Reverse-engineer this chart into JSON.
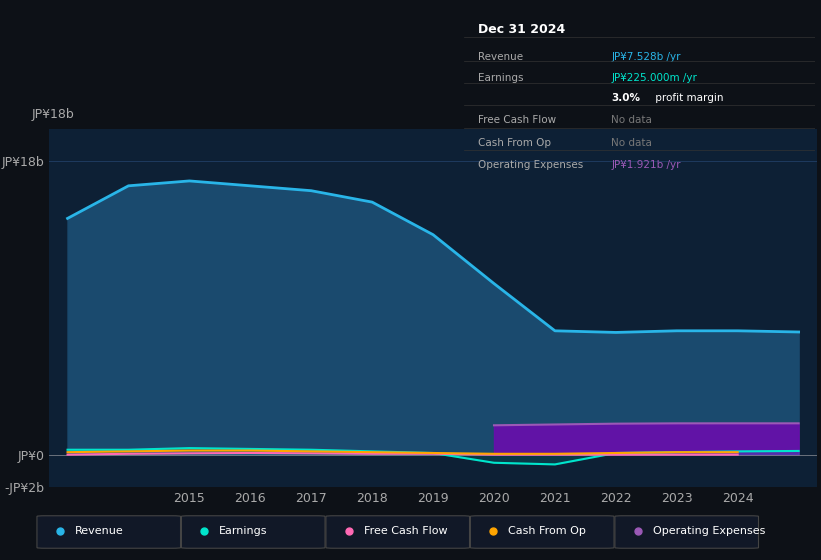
{
  "background_color": "#0d1117",
  "plot_bg_color": "#0d2035",
  "ylim": [
    -2000000000.0,
    20000000000.0
  ],
  "years": [
    2013,
    2014,
    2015,
    2016,
    2017,
    2018,
    2019,
    2020,
    2021,
    2022,
    2023,
    2024,
    2025
  ],
  "revenue": [
    14500000000.0,
    16500000000.0,
    16800000000.0,
    16500000000.0,
    16200000000.0,
    15500000000.0,
    13500000000.0,
    10500000000.0,
    7600000000.0,
    7500000000.0,
    7600000000.0,
    7600000000.0,
    7528000000.0
  ],
  "earnings": [
    300000000.0,
    300000000.0,
    400000000.0,
    350000000.0,
    300000000.0,
    200000000.0,
    100000000.0,
    -500000000.0,
    -600000000.0,
    100000000.0,
    150000000.0,
    200000000.0,
    225000000.0
  ],
  "free_cash_flow": [
    0.0,
    50000000.0,
    80000000.0,
    100000000.0,
    80000000.0,
    50000000.0,
    50000000.0,
    0.0,
    0.0,
    0.0,
    0.0,
    0.0,
    null
  ],
  "cash_from_op": [
    150000000.0,
    200000000.0,
    250000000.0,
    250000000.0,
    200000000.0,
    150000000.0,
    100000000.0,
    50000000.0,
    50000000.0,
    100000000.0,
    150000000.0,
    150000000.0,
    null
  ],
  "operating_expenses": [
    null,
    null,
    null,
    null,
    null,
    null,
    null,
    1800000000.0,
    1850000000.0,
    1900000000.0,
    1920000000.0,
    1921000000.0,
    1921000000.0
  ],
  "revenue_color": "#29b5e8",
  "revenue_fill": "#1a4a6e",
  "earnings_color": "#00e5cc",
  "free_cash_flow_color": "#ff69b4",
  "cash_from_op_color": "#ffa500",
  "operating_expenses_color": "#9b59b6",
  "operating_expenses_fill": "#6a0dad",
  "grid_color": "#1e3a5f",
  "legend_labels": [
    "Revenue",
    "Earnings",
    "Free Cash Flow",
    "Cash From Op",
    "Operating Expenses"
  ],
  "legend_colors": [
    "#29b5e8",
    "#00e5cc",
    "#ff69b4",
    "#ffa500",
    "#9b59b6"
  ],
  "x_label_years": [
    2015,
    2016,
    2017,
    2018,
    2019,
    2020,
    2021,
    2022,
    2023,
    2024
  ],
  "box_date": "Dec 31 2024",
  "box_rows": [
    {
      "label": "Revenue",
      "value": "JP¥7.528b /yr",
      "value_color": "#29b5e8"
    },
    {
      "label": "Earnings",
      "value": "JP¥225.000m /yr",
      "value_color": "#00e5cc"
    },
    {
      "label": "",
      "value": "3.0% profit margin",
      "value_color": "#ffffff"
    },
    {
      "label": "Free Cash Flow",
      "value": "No data",
      "value_color": "#777777"
    },
    {
      "label": "Cash From Op",
      "value": "No data",
      "value_color": "#777777"
    },
    {
      "label": "Operating Expenses",
      "value": "JP¥1.921b /yr",
      "value_color": "#9b59b6"
    }
  ]
}
